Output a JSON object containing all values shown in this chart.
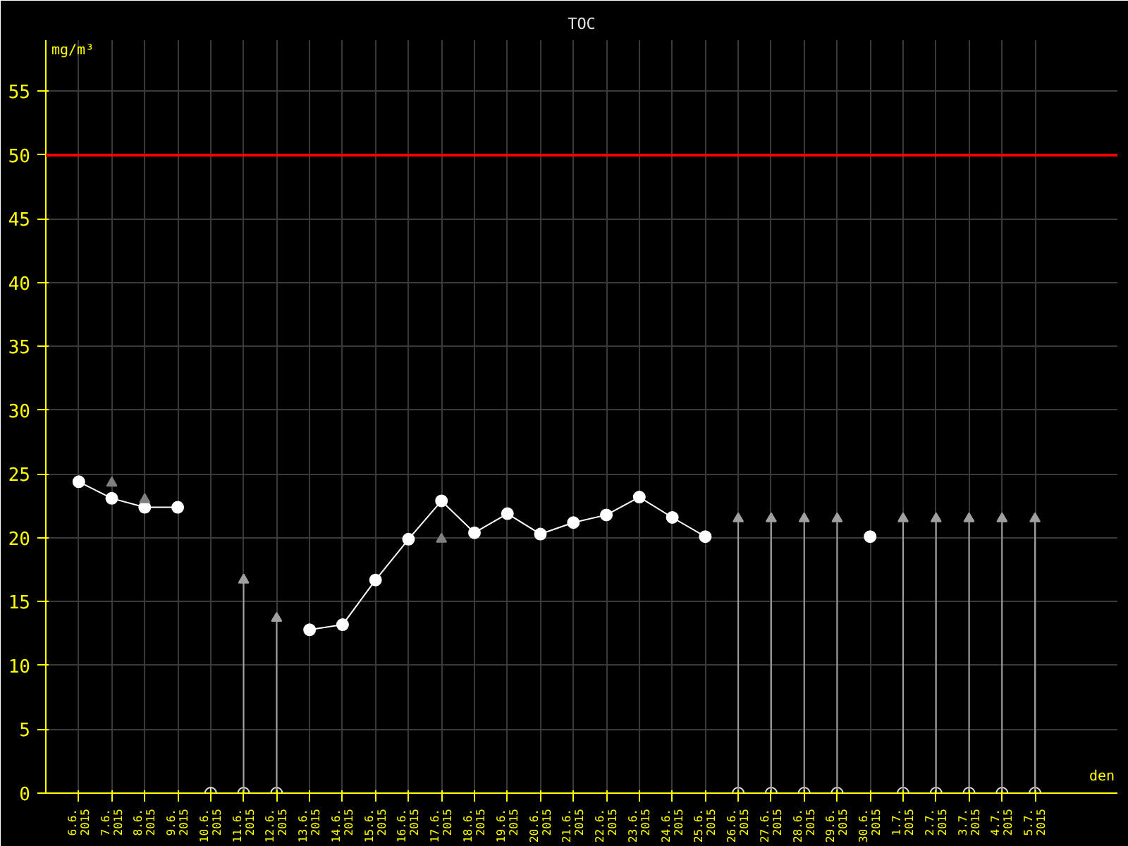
{
  "chart_data": {
    "type": "line",
    "title": "TOC",
    "xlabel": "den",
    "ylabel": "mg/m³",
    "categories": [
      "6.6.\n2015",
      "7.6.\n2015",
      "8.6.\n2015",
      "9.6.\n2015",
      "10.6.\n2015",
      "11.6.\n2015",
      "12.6.\n2015",
      "13.6.\n2015",
      "14.6.\n2015",
      "15.6.\n2015",
      "16.6.\n2015",
      "17.6.\n2015",
      "18.6.\n2015",
      "19.6.\n2015",
      "20.6.\n2015",
      "21.6.\n2015",
      "22.6.\n2015",
      "23.6.\n2015",
      "24.6.\n2015",
      "25.6.\n2015",
      "26.6.\n2015",
      "27.6.\n2015",
      "28.6.\n2015",
      "29.6.\n2015",
      "30.6.\n2015",
      "1.7.\n2015",
      "2.7.\n2015",
      "3.7.\n2015",
      "4.7.\n2015",
      "5.7.\n2015"
    ],
    "series": [
      {
        "color": "#ffffff",
        "marker": "circle",
        "values": [
          24.4,
          23.1,
          22.4,
          22.4,
          null,
          null,
          null,
          12.8,
          13.2,
          16.7,
          19.9,
          22.9,
          20.4,
          21.9,
          20.3,
          21.2,
          21.8,
          23.2,
          21.6,
          20.1,
          null,
          null,
          null,
          null,
          20.1,
          null,
          null,
          null,
          null,
          null
        ]
      },
      {
        "type": "scatter",
        "color": "#e0e0e0",
        "marker": "circle",
        "values": [
          null,
          null,
          null,
          null,
          0,
          0,
          0,
          null,
          null,
          null,
          null,
          null,
          null,
          null,
          null,
          null,
          null,
          null,
          null,
          null,
          0,
          0,
          0,
          0,
          null,
          0,
          0,
          0,
          0,
          0
        ]
      },
      {
        "type": "lollipop",
        "color": "#a0a0a0",
        "values": [
          null,
          null,
          null,
          null,
          null,
          16.7,
          13.7,
          null,
          null,
          null,
          null,
          null,
          null,
          null,
          null,
          null,
          null,
          null,
          null,
          null,
          21.5,
          21.5,
          21.5,
          21.5,
          null,
          21.5,
          21.5,
          21.5,
          21.5,
          21.5
        ]
      },
      {
        "type": "scatter",
        "color": "#808080",
        "marker": "triangle",
        "values": [
          null,
          24.3,
          23.0,
          null,
          null,
          null,
          null,
          null,
          null,
          null,
          null,
          19.9,
          null,
          null,
          null,
          null,
          null,
          null,
          null,
          null,
          null,
          null,
          null,
          null,
          null,
          null,
          null,
          null,
          null,
          null
        ]
      }
    ],
    "ylim": [
      0,
      59
    ],
    "yticks": [
      0,
      5,
      10,
      15,
      20,
      25,
      30,
      35,
      40,
      45,
      50,
      55
    ],
    "grid": true,
    "ref_lines": [
      {
        "axis": "y",
        "value": 50,
        "color": "#ff0000"
      }
    ]
  }
}
